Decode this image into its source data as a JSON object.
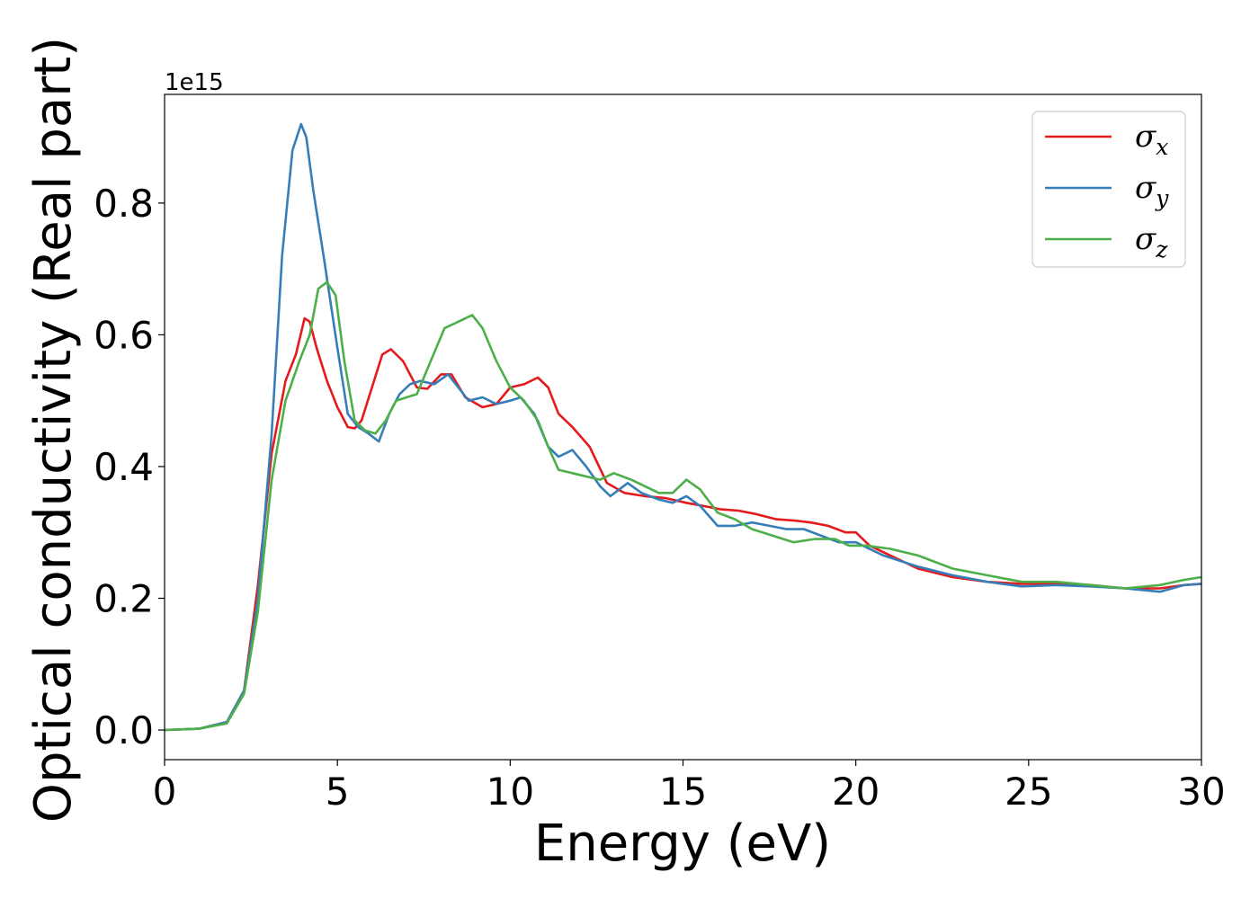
{
  "chart_data": {
    "type": "line",
    "xlabel": "Energy (eV)",
    "ylabel": "Optical conductivity (Real part)",
    "y_offset_label": "1e15",
    "xlim": [
      0,
      30
    ],
    "ylim": [
      -0.045,
      0.965
    ],
    "xticks": [
      0,
      5,
      10,
      15,
      20,
      25,
      30
    ],
    "xtick_labels": [
      "0",
      "5",
      "10",
      "15",
      "20",
      "25",
      "30"
    ],
    "yticks": [
      0.0,
      0.2,
      0.4,
      0.6,
      0.8
    ],
    "ytick_labels": [
      "0.0",
      "0.2",
      "0.4",
      "0.6",
      "0.8"
    ],
    "grid": false,
    "legend": {
      "position": "top-right",
      "entries": [
        {
          "symbol": "σ",
          "subscript": "x",
          "color": "#e41a1c"
        },
        {
          "symbol": "σ",
          "subscript": "y",
          "color": "#377eb8"
        },
        {
          "symbol": "σ",
          "subscript": "z",
          "color": "#4daf4a"
        }
      ]
    },
    "series": [
      {
        "color": "#e41a1c",
        "x": [
          0,
          1,
          1.8,
          2.3,
          2.7,
          3.1,
          3.5,
          3.8,
          4.05,
          4.2,
          4.4,
          4.7,
          5.0,
          5.3,
          5.5,
          5.7,
          6.0,
          6.3,
          6.55,
          6.9,
          7.3,
          7.6,
          8.0,
          8.3,
          8.7,
          9.2,
          9.6,
          10.0,
          10.4,
          10.8,
          11.1,
          11.4,
          11.8,
          12.3,
          12.8,
          13.3,
          13.9,
          14.5,
          15.1,
          15.6,
          16.1,
          16.6,
          17.1,
          17.7,
          18.2,
          18.7,
          19.2,
          19.7,
          20.0,
          20.4,
          21.0,
          21.8,
          22.8,
          23.8,
          24.8,
          25.8,
          26.8,
          27.8,
          28.8,
          29.5,
          30.0
        ],
        "y": [
          0.0,
          0.002,
          0.012,
          0.06,
          0.22,
          0.42,
          0.53,
          0.57,
          0.625,
          0.62,
          0.58,
          0.53,
          0.49,
          0.46,
          0.458,
          0.47,
          0.52,
          0.57,
          0.578,
          0.56,
          0.52,
          0.518,
          0.54,
          0.54,
          0.505,
          0.49,
          0.495,
          0.52,
          0.525,
          0.535,
          0.52,
          0.48,
          0.46,
          0.43,
          0.375,
          0.36,
          0.355,
          0.352,
          0.345,
          0.34,
          0.335,
          0.333,
          0.328,
          0.32,
          0.318,
          0.315,
          0.31,
          0.3,
          0.3,
          0.28,
          0.265,
          0.245,
          0.232,
          0.225,
          0.222,
          0.222,
          0.22,
          0.215,
          0.215,
          0.22,
          0.222
        ]
      },
      {
        "color": "#377eb8",
        "x": [
          0,
          1,
          1.8,
          2.3,
          2.7,
          3.1,
          3.4,
          3.7,
          3.95,
          4.1,
          4.3,
          4.6,
          5.0,
          5.3,
          5.6,
          5.9,
          6.2,
          6.5,
          6.8,
          7.1,
          7.4,
          7.8,
          8.2,
          8.5,
          8.8,
          9.2,
          9.6,
          10.0,
          10.3,
          10.7,
          11.1,
          11.4,
          11.8,
          12.2,
          12.6,
          12.9,
          13.4,
          13.8,
          14.3,
          14.7,
          15.1,
          15.5,
          16.0,
          16.5,
          17.0,
          17.5,
          18.0,
          18.5,
          19.0,
          19.5,
          20.0,
          20.8,
          21.8,
          22.8,
          23.8,
          24.8,
          25.8,
          26.8,
          27.8,
          28.8,
          29.5,
          30.0
        ],
        "y": [
          0.0,
          0.002,
          0.012,
          0.06,
          0.2,
          0.45,
          0.72,
          0.88,
          0.92,
          0.9,
          0.82,
          0.72,
          0.58,
          0.48,
          0.46,
          0.45,
          0.438,
          0.48,
          0.51,
          0.525,
          0.53,
          0.525,
          0.54,
          0.52,
          0.5,
          0.505,
          0.495,
          0.5,
          0.505,
          0.48,
          0.43,
          0.415,
          0.425,
          0.4,
          0.37,
          0.355,
          0.375,
          0.36,
          0.35,
          0.345,
          0.355,
          0.34,
          0.31,
          0.31,
          0.315,
          0.31,
          0.305,
          0.305,
          0.295,
          0.285,
          0.285,
          0.265,
          0.248,
          0.235,
          0.225,
          0.218,
          0.22,
          0.218,
          0.215,
          0.21,
          0.22,
          0.222
        ]
      },
      {
        "color": "#4daf4a",
        "x": [
          0,
          1,
          1.8,
          2.3,
          2.7,
          3.1,
          3.5,
          3.9,
          4.2,
          4.45,
          4.7,
          4.95,
          5.2,
          5.5,
          5.8,
          6.1,
          6.4,
          6.7,
          7.0,
          7.3,
          7.7,
          8.1,
          8.5,
          8.9,
          9.2,
          9.6,
          10.0,
          10.4,
          10.8,
          11.1,
          11.4,
          11.8,
          12.2,
          12.6,
          13.0,
          13.5,
          13.9,
          14.3,
          14.7,
          15.1,
          15.5,
          16.0,
          16.5,
          17.0,
          17.6,
          18.2,
          18.8,
          19.4,
          19.8,
          20.3,
          21.0,
          21.8,
          22.8,
          23.8,
          24.8,
          25.8,
          26.8,
          27.8,
          28.8,
          29.5,
          30.0
        ],
        "y": [
          0.0,
          0.002,
          0.01,
          0.055,
          0.18,
          0.38,
          0.5,
          0.56,
          0.6,
          0.67,
          0.68,
          0.66,
          0.56,
          0.47,
          0.455,
          0.45,
          0.47,
          0.5,
          0.505,
          0.51,
          0.56,
          0.61,
          0.62,
          0.63,
          0.61,
          0.56,
          0.52,
          0.5,
          0.47,
          0.43,
          0.395,
          0.39,
          0.385,
          0.38,
          0.39,
          0.38,
          0.37,
          0.36,
          0.36,
          0.38,
          0.365,
          0.33,
          0.32,
          0.305,
          0.295,
          0.285,
          0.29,
          0.29,
          0.28,
          0.28,
          0.275,
          0.265,
          0.245,
          0.235,
          0.225,
          0.225,
          0.22,
          0.215,
          0.22,
          0.228,
          0.232
        ]
      }
    ]
  }
}
